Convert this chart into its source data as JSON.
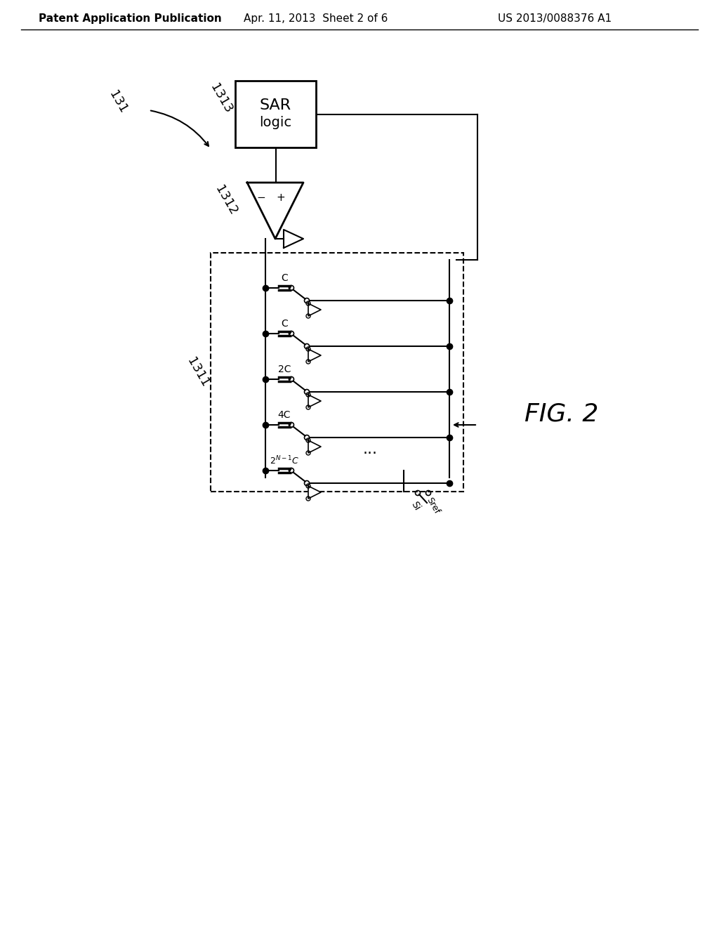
{
  "bg_color": "#ffffff",
  "line_color": "#000000",
  "header_text": "Patent Application Publication",
  "header_date": "Apr. 11, 2013  Sheet 2 of 6",
  "header_patent": "US 2013/0088376 A1",
  "fig_label": "FIG. 2",
  "label_131": "131",
  "label_1311": "1311",
  "label_1312": "1312",
  "label_1313": "1313",
  "cap_labels": [
    "C",
    "C",
    "2C",
    "4C",
    "2^{N-1}C"
  ],
  "si_label": "Si",
  "sref_label": "Sref"
}
